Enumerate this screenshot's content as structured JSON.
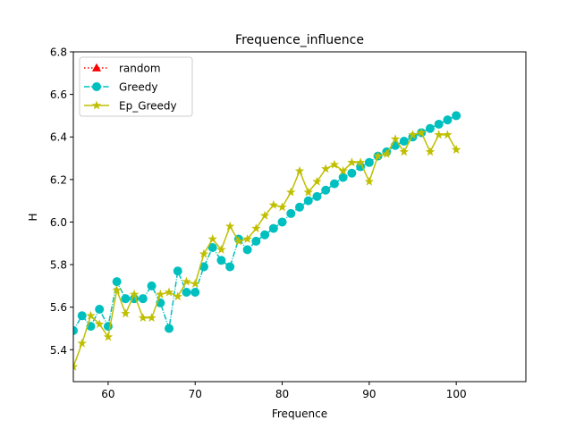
{
  "chart_data": {
    "type": "line",
    "title": "Frequence_influence",
    "xlabel": "Frequence",
    "ylabel": "H",
    "xlim": [
      56,
      108
    ],
    "ylim": [
      5.25,
      6.8
    ],
    "xticks": [
      60,
      70,
      80,
      90,
      100
    ],
    "yticks": [
      5.4,
      5.6,
      5.8,
      6.0,
      6.2,
      6.4,
      6.6,
      6.8
    ],
    "ytick_labels": [
      "5.4",
      "5.6",
      "5.8",
      "6.0",
      "6.2",
      "6.4",
      "6.6",
      "6.8"
    ],
    "grid": false,
    "legend_position": "upper-left",
    "series": [
      {
        "name": "random",
        "color": "#ff0000",
        "linestyle": "dotted",
        "marker": "triangle",
        "x": [],
        "y": []
      },
      {
        "name": "Greedy",
        "color": "#00bfbf",
        "linestyle": "dashdot",
        "marker": "circle",
        "x": [
          55,
          56,
          57,
          58,
          59,
          60,
          61,
          62,
          63,
          64,
          65,
          66,
          67,
          68,
          69,
          70,
          71,
          72,
          73,
          74,
          75,
          76,
          77,
          78,
          79,
          80,
          81,
          82,
          83,
          84,
          85,
          86,
          87,
          88,
          89,
          90,
          91,
          92,
          93,
          94,
          95,
          96,
          97,
          98,
          99,
          100
        ],
        "y": [
          5.52,
          5.49,
          5.56,
          5.51,
          5.59,
          5.51,
          5.72,
          5.64,
          5.64,
          5.64,
          5.7,
          5.62,
          5.5,
          5.77,
          5.67,
          5.67,
          5.79,
          5.88,
          5.82,
          5.79,
          5.92,
          5.87,
          5.91,
          5.94,
          5.97,
          6.0,
          6.04,
          6.07,
          6.1,
          6.12,
          6.15,
          6.18,
          6.21,
          6.23,
          6.26,
          6.28,
          6.31,
          6.33,
          6.36,
          6.38,
          6.4,
          6.42,
          6.44,
          6.46,
          6.48,
          6.5
        ]
      },
      {
        "name": "Ep_Greedy",
        "color": "#bfbf00",
        "linestyle": "solid",
        "marker": "star",
        "x": [
          55,
          56,
          57,
          58,
          59,
          60,
          61,
          62,
          63,
          64,
          65,
          66,
          67,
          68,
          69,
          70,
          71,
          72,
          73,
          74,
          75,
          76,
          77,
          78,
          79,
          80,
          81,
          82,
          83,
          84,
          85,
          86,
          87,
          88,
          89,
          90,
          91,
          92,
          93,
          94,
          95,
          96,
          97,
          98,
          99,
          100
        ],
        "y": [
          5.22,
          5.32,
          5.43,
          5.56,
          5.52,
          5.46,
          5.68,
          5.57,
          5.66,
          5.55,
          5.55,
          5.66,
          5.67,
          5.65,
          5.72,
          5.71,
          5.85,
          5.92,
          5.87,
          5.98,
          5.91,
          5.92,
          5.97,
          6.03,
          6.08,
          6.07,
          6.14,
          6.24,
          6.14,
          6.19,
          6.25,
          6.27,
          6.24,
          6.28,
          6.28,
          6.19,
          6.31,
          6.32,
          6.39,
          6.33,
          6.41,
          6.42,
          6.33,
          6.41,
          6.41,
          6.34
        ]
      }
    ]
  }
}
